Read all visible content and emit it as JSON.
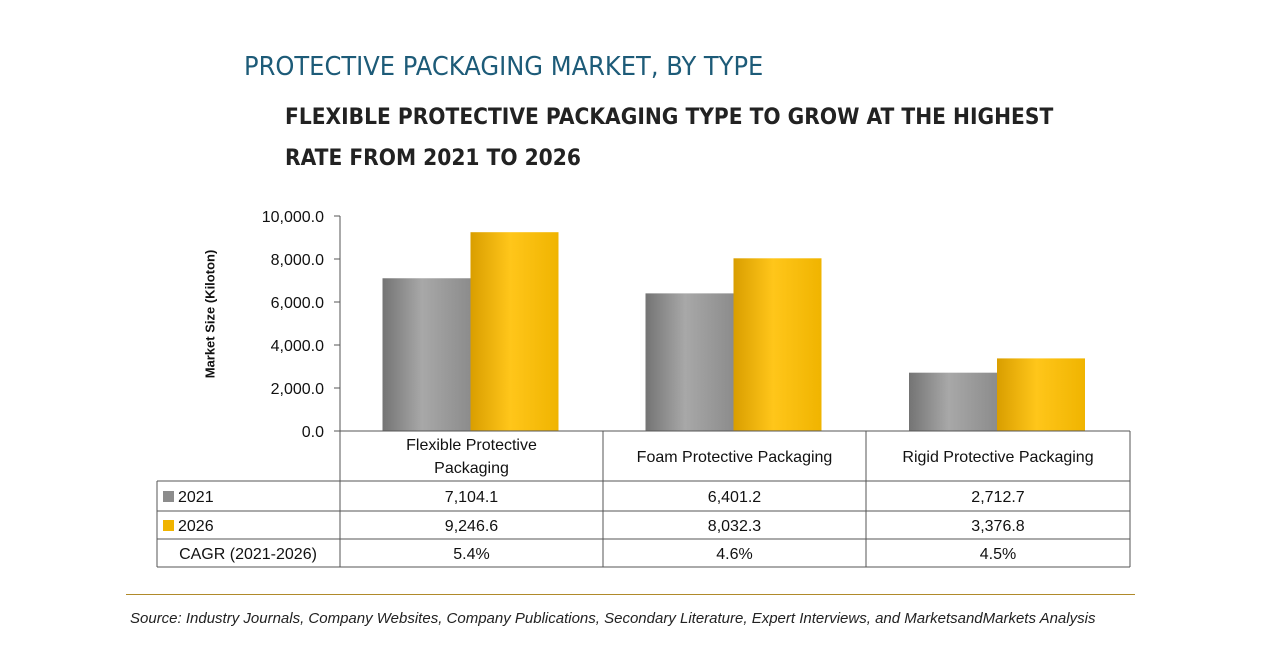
{
  "title": "PROTECTIVE PACKAGING MARKET, BY TYPE",
  "subtitle": "FLEXIBLE PROTECTIVE PACKAGING TYPE TO GROW AT THE HIGHEST RATE FROM 2021 TO 2026",
  "source": "Source: Industry Journals, Company Websites, Company Publications, Secondary Literature, Expert Interviews, and MarketsandMarkets Analysis",
  "colors": {
    "2021": "#8c8c8c",
    "2026": "#f0b400",
    "title": "#1d5b78"
  },
  "chart_data": {
    "type": "bar",
    "title": "PROTECTIVE PACKAGING MARKET, BY TYPE",
    "xlabel": "",
    "ylabel": "Market Size (Kiloton)",
    "ylim": [
      0,
      10000
    ],
    "yticks": [
      0,
      2000,
      4000,
      6000,
      8000,
      10000
    ],
    "ytick_labels": [
      "0.0",
      "2,000.0",
      "4,000.0",
      "6,000.0",
      "8,000.0",
      "10,000.0"
    ],
    "categories": [
      "Flexible Protective Packaging",
      "Foam Protective Packaging",
      "Rigid Protective Packaging"
    ],
    "series": [
      {
        "name": "2021",
        "values": [
          7104.1,
          6401.2,
          2712.7
        ],
        "labels": [
          "7,104.1",
          "6,401.2",
          "2,712.7"
        ]
      },
      {
        "name": "2026",
        "values": [
          9246.6,
          8032.3,
          3376.8
        ],
        "labels": [
          "9,246.6",
          "8,032.3",
          "3,376.8"
        ]
      }
    ],
    "cagr": {
      "label": "CAGR (2021-2026)",
      "values": [
        "5.4%",
        "4.6%",
        "4.5%"
      ]
    }
  }
}
